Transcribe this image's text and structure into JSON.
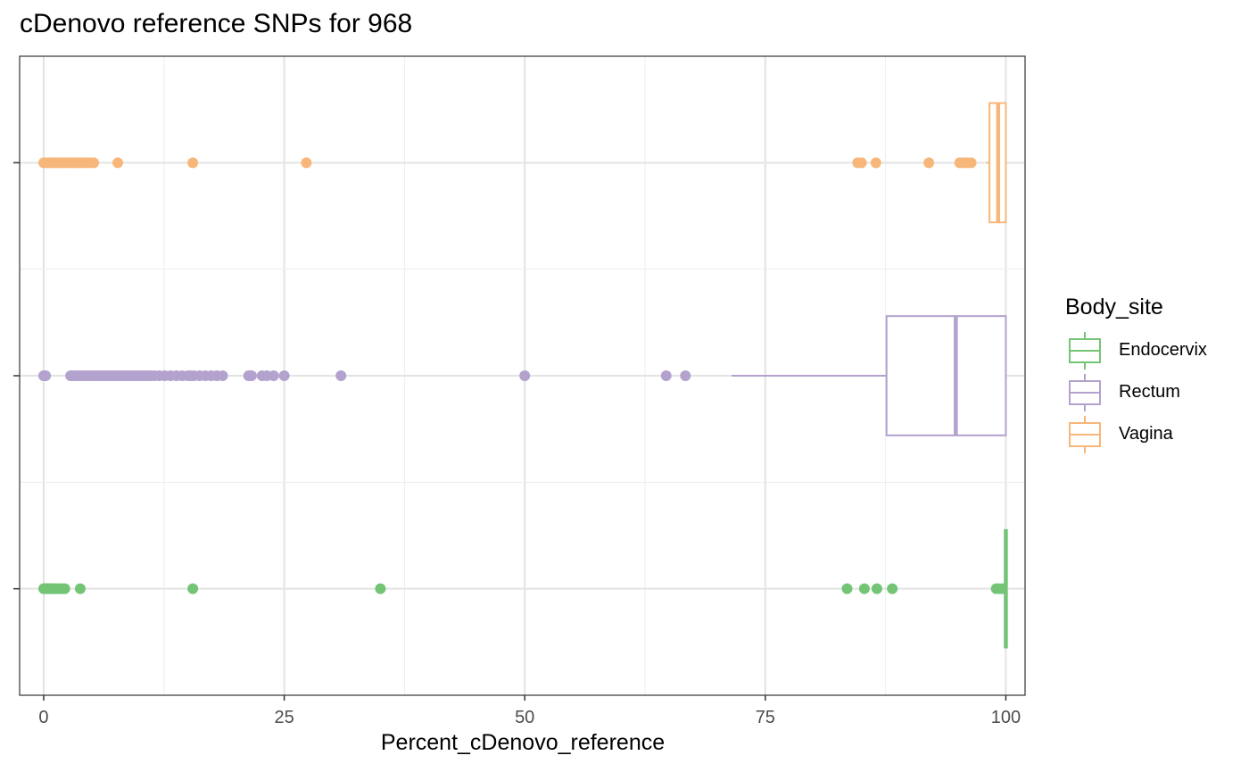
{
  "chart_data": {
    "type": "boxplot",
    "orientation": "horizontal",
    "title": "cDenovo reference SNPs for 968",
    "xlabel": "Percent_cDenovo_reference",
    "ylabel": "",
    "xlim": [
      -2.5,
      102
    ],
    "x_ticks": [
      0,
      25,
      50,
      75,
      100
    ],
    "grid": true,
    "legend": {
      "title": "Body_site",
      "placement": "right",
      "entries": [
        "Endocervix",
        "Rectum",
        "Vagina"
      ]
    },
    "colors": {
      "Endocervix": "#74c476",
      "Rectum": "#b3a2ce",
      "Vagina": "#f8b77a"
    },
    "series": [
      {
        "name": "Endocervix",
        "box": {
          "whisker_low": 100,
          "q1": 100,
          "median": 100,
          "q3": 100,
          "whisker_high": 100
        },
        "outliers": [
          0,
          0.1,
          0.2,
          0.3,
          0.4,
          0.5,
          0.6,
          0.7,
          0.8,
          0.9,
          1.0,
          1.2,
          1.4,
          1.6,
          1.8,
          2.0,
          2.2,
          3.8,
          15.5,
          35.0,
          83.5,
          85.3,
          86.6,
          88.2,
          99.0,
          99.3,
          99.6
        ]
      },
      {
        "name": "Rectum",
        "box": {
          "whisker_low": 71.5,
          "q1": 87.6,
          "median": 94.8,
          "q3": 100,
          "whisker_high": 100
        },
        "outliers": [
          0,
          0.05,
          0.1,
          0.15,
          0.2,
          2.8,
          3.0,
          3.3,
          3.6,
          3.9,
          4.2,
          4.5,
          4.8,
          5.1,
          5.4,
          5.7,
          6.0,
          6.3,
          6.6,
          6.9,
          7.2,
          7.5,
          7.8,
          8.1,
          8.4,
          8.7,
          9.0,
          9.3,
          9.6,
          9.9,
          10.2,
          10.5,
          10.8,
          11.1,
          11.5,
          12.0,
          12.6,
          13.2,
          13.8,
          14.4,
          15.0,
          15.3,
          15.6,
          16.2,
          16.8,
          17.4,
          18.0,
          18.6,
          21.3,
          21.6,
          22.7,
          23.2,
          23.9,
          25.0,
          30.9,
          50.0,
          64.7,
          66.7
        ]
      },
      {
        "name": "Vagina",
        "box": {
          "whisker_low": 98.0,
          "q1": 98.3,
          "median": 99.2,
          "q3": 100,
          "whisker_high": 100
        },
        "outliers": [
          0,
          0.3,
          0.6,
          0.9,
          1.2,
          1.5,
          1.8,
          2.1,
          2.4,
          2.7,
          3.0,
          3.3,
          3.6,
          3.9,
          4.2,
          4.5,
          4.8,
          5.2,
          7.7,
          15.5,
          27.3,
          84.6,
          85.0,
          86.5,
          92.0,
          95.2,
          95.6,
          96.0,
          96.4
        ]
      }
    ]
  }
}
